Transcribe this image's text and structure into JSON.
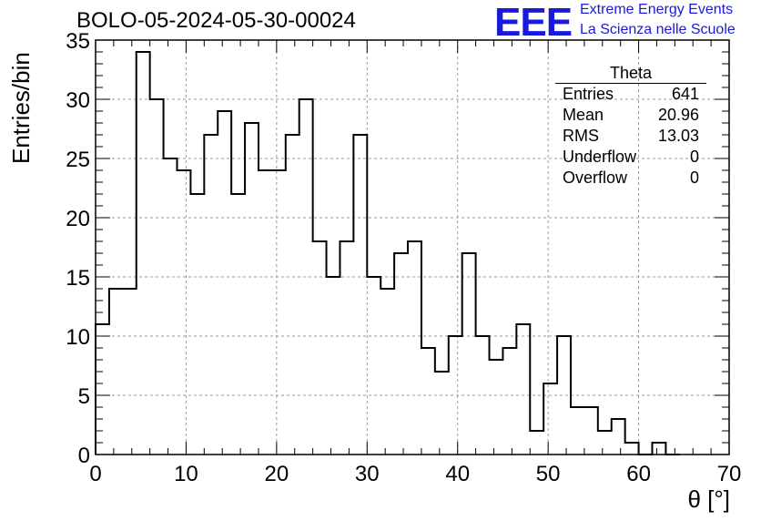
{
  "header": {
    "title": "BOLO-05-2024-05-30-00024",
    "logo_mark": "EEE",
    "logo_line1": "Extreme Energy Events",
    "logo_line2": "La Scienza nelle Scuole"
  },
  "stats_box": {
    "title": "Theta",
    "rows": [
      {
        "label": "Entries",
        "value": "641"
      },
      {
        "label": "Mean",
        "value": "20.96"
      },
      {
        "label": "RMS",
        "value": "13.03"
      },
      {
        "label": "Underflow",
        "value": "0"
      },
      {
        "label": "Overflow",
        "value": "0"
      }
    ]
  },
  "chart_data": {
    "type": "bar",
    "histogram": true,
    "xlabel": "θ [°]",
    "ylabel": "Entries/bin",
    "xlim": [
      0,
      70
    ],
    "ylim": [
      0,
      35
    ],
    "x_ticks": [
      0,
      10,
      20,
      30,
      40,
      50,
      60,
      70
    ],
    "y_ticks": [
      0,
      5,
      10,
      15,
      20,
      25,
      30,
      35
    ],
    "grid": true,
    "bin_width": 1.5,
    "bin_edges_start": 0,
    "values": [
      11,
      14,
      14,
      34,
      30,
      25,
      24,
      22,
      27,
      29,
      22,
      28,
      24,
      24,
      27,
      30,
      18,
      15,
      18,
      27,
      15,
      14,
      17,
      18,
      9,
      7,
      10,
      17,
      10,
      8,
      9,
      11,
      2,
      6,
      10,
      4,
      4,
      2,
      3,
      1,
      0,
      1,
      0
    ],
    "line_color": "#000000"
  }
}
